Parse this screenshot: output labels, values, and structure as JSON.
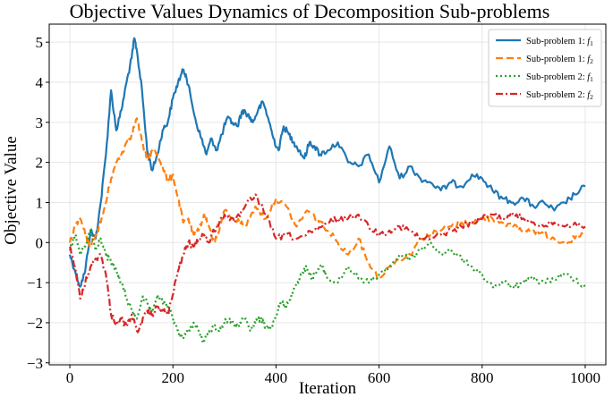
{
  "chart_data": {
    "type": "line",
    "title": "Objective Values Dynamics of Decomposition Sub-problems",
    "xlabel": "Iteration",
    "ylabel": "Objective Value",
    "xlim": [
      -40,
      1040
    ],
    "ylim": [
      -3.05,
      5.45
    ],
    "xticks": [
      0,
      200,
      400,
      600,
      800,
      1000
    ],
    "yticks": [
      -3,
      -2,
      -1,
      0,
      1,
      2,
      3,
      4,
      5
    ],
    "grid": true,
    "legend_position": "top-right",
    "series": [
      {
        "name": "Sub-problem 1: f1",
        "label_prefix": "Sub-problem 1: ",
        "label_func": "f",
        "label_sub": "1",
        "color": "#1f77b4",
        "style": "solid",
        "x": [
          0,
          10,
          20,
          30,
          40,
          50,
          60,
          70,
          80,
          90,
          100,
          110,
          120,
          125,
          130,
          140,
          150,
          160,
          170,
          180,
          190,
          200,
          210,
          220,
          225,
          235,
          245,
          255,
          265,
          275,
          285,
          295,
          305,
          315,
          325,
          335,
          345,
          355,
          365,
          375,
          385,
          395,
          405,
          415,
          425,
          435,
          445,
          455,
          465,
          475,
          485,
          500,
          520,
          540,
          560,
          580,
          600,
          620,
          640,
          660,
          680,
          700,
          720,
          740,
          760,
          780,
          800,
          820,
          840,
          860,
          880,
          900,
          920,
          940,
          960,
          980,
          1000
        ],
        "y": [
          -0.3,
          -0.7,
          -1.1,
          -0.7,
          0.3,
          0.1,
          1.0,
          2.2,
          3.8,
          2.8,
          3.3,
          4.0,
          4.6,
          5.1,
          4.8,
          3.8,
          2.3,
          1.8,
          2.2,
          2.8,
          3.0,
          3.6,
          4.0,
          4.3,
          4.2,
          3.6,
          3.0,
          2.6,
          2.2,
          2.6,
          2.3,
          2.7,
          3.1,
          3.0,
          2.9,
          3.3,
          3.2,
          3.0,
          3.3,
          3.5,
          3.1,
          2.6,
          2.3,
          2.9,
          2.7,
          2.5,
          2.3,
          2.1,
          2.5,
          2.4,
          2.2,
          2.3,
          2.5,
          2.0,
          1.9,
          2.2,
          1.5,
          2.4,
          1.6,
          1.9,
          1.6,
          1.5,
          1.3,
          1.5,
          1.4,
          1.7,
          1.6,
          1.3,
          1.1,
          1.0,
          1.1,
          0.9,
          1.0,
          0.8,
          1.0,
          1.2,
          1.4
        ]
      },
      {
        "name": "Sub-problem 1: f2",
        "label_prefix": "Sub-problem 1: ",
        "label_func": "f",
        "label_sub": "2",
        "color": "#ff7f0e",
        "style": "dashed",
        "x": [
          0,
          10,
          20,
          30,
          40,
          50,
          60,
          70,
          80,
          90,
          100,
          110,
          120,
          130,
          140,
          150,
          160,
          170,
          180,
          190,
          200,
          210,
          220,
          230,
          240,
          250,
          260,
          270,
          280,
          290,
          300,
          320,
          340,
          360,
          380,
          400,
          420,
          440,
          460,
          480,
          500,
          520,
          540,
          560,
          580,
          600,
          620,
          640,
          660,
          680,
          700,
          720,
          740,
          760,
          780,
          800,
          820,
          840,
          860,
          880,
          900,
          920,
          940,
          960,
          980,
          1000
        ],
        "y": [
          0.0,
          0.4,
          0.6,
          0.2,
          -0.1,
          0.2,
          0.5,
          1.0,
          1.6,
          2.0,
          2.2,
          2.5,
          2.7,
          3.1,
          2.5,
          2.1,
          2.3,
          2.2,
          1.9,
          1.5,
          1.7,
          1.1,
          0.5,
          0.6,
          0.2,
          0.3,
          0.7,
          0.4,
          0.0,
          0.3,
          0.8,
          0.6,
          0.4,
          0.9,
          0.6,
          1.1,
          0.9,
          0.4,
          0.8,
          0.6,
          0.3,
          0.0,
          -0.3,
          0.1,
          -0.5,
          -0.9,
          -0.6,
          -0.4,
          -0.3,
          0.1,
          0.2,
          0.3,
          0.4,
          0.5,
          0.5,
          0.6,
          0.6,
          0.5,
          0.4,
          0.3,
          0.3,
          0.2,
          0.1,
          0.0,
          0.1,
          0.2
        ]
      },
      {
        "name": "Sub-problem 2: f1",
        "label_prefix": "Sub-problem 2: ",
        "label_func": "f",
        "label_sub": "1",
        "color": "#2ca02c",
        "style": "dotted",
        "x": [
          0,
          10,
          20,
          30,
          40,
          50,
          60,
          70,
          80,
          90,
          100,
          110,
          120,
          130,
          140,
          150,
          160,
          170,
          180,
          190,
          200,
          210,
          220,
          230,
          240,
          250,
          260,
          270,
          280,
          290,
          300,
          310,
          320,
          330,
          340,
          350,
          360,
          370,
          380,
          390,
          400,
          410,
          420,
          430,
          440,
          450,
          460,
          470,
          480,
          490,
          500,
          520,
          540,
          560,
          580,
          600,
          620,
          640,
          660,
          680,
          700,
          720,
          740,
          760,
          780,
          800,
          820,
          840,
          860,
          880,
          900,
          920,
          940,
          960,
          980,
          1000
        ],
        "y": [
          -0.2,
          0.2,
          -0.3,
          -0.1,
          0.3,
          -0.2,
          0.1,
          -0.3,
          -0.5,
          -0.7,
          -1.0,
          -1.4,
          -1.7,
          -1.9,
          -1.4,
          -1.5,
          -1.8,
          -1.3,
          -1.5,
          -1.6,
          -1.9,
          -2.2,
          -2.4,
          -2.2,
          -2.0,
          -2.2,
          -2.5,
          -2.2,
          -2.1,
          -2.2,
          -2.0,
          -1.9,
          -2.1,
          -2.0,
          -1.9,
          -2.2,
          -2.0,
          -1.9,
          -2.1,
          -2.1,
          -1.8,
          -1.5,
          -1.6,
          -1.3,
          -1.0,
          -0.8,
          -0.6,
          -0.9,
          -0.7,
          -0.6,
          -0.9,
          -1.0,
          -0.6,
          -0.9,
          -1.0,
          -0.8,
          -0.6,
          -0.3,
          -0.4,
          -0.2,
          0.0,
          -0.3,
          -0.2,
          -0.4,
          -0.6,
          -0.8,
          -1.1,
          -1.0,
          -1.1,
          -1.0,
          -0.9,
          -1.0,
          -0.9,
          -0.8,
          -0.9,
          -1.1
        ]
      },
      {
        "name": "Sub-problem 2: f2",
        "label_prefix": "Sub-problem 2: ",
        "label_func": "f",
        "label_sub": "2",
        "color": "#d62728",
        "style": "dashdot",
        "x": [
          0,
          10,
          20,
          30,
          40,
          50,
          60,
          70,
          80,
          90,
          100,
          110,
          120,
          130,
          140,
          150,
          160,
          170,
          180,
          190,
          200,
          210,
          220,
          230,
          240,
          250,
          260,
          270,
          280,
          290,
          300,
          320,
          340,
          360,
          380,
          400,
          420,
          440,
          460,
          480,
          500,
          520,
          540,
          560,
          580,
          600,
          620,
          640,
          660,
          680,
          700,
          720,
          740,
          760,
          780,
          800,
          820,
          840,
          860,
          880,
          900,
          920,
          940,
          960,
          980,
          1000
        ],
        "y": [
          -0.1,
          -0.6,
          -1.4,
          -1.0,
          -0.6,
          -0.4,
          -0.3,
          -0.8,
          -1.8,
          -2.0,
          -1.9,
          -2.1,
          -1.8,
          -2.2,
          -2.0,
          -1.7,
          -1.8,
          -1.6,
          -1.7,
          -1.8,
          -1.3,
          -0.7,
          -0.3,
          0.0,
          -0.1,
          0.1,
          0.2,
          0.0,
          0.3,
          0.5,
          0.7,
          0.5,
          0.9,
          1.2,
          0.7,
          0.1,
          0.2,
          0.1,
          0.2,
          0.3,
          0.5,
          0.6,
          0.6,
          0.7,
          0.4,
          0.2,
          0.3,
          0.4,
          0.3,
          0.1,
          0.1,
          0.2,
          0.3,
          0.4,
          0.5,
          0.6,
          0.7,
          0.6,
          0.7,
          0.6,
          0.5,
          0.4,
          0.5,
          0.4,
          0.5,
          0.4
        ]
      }
    ]
  }
}
